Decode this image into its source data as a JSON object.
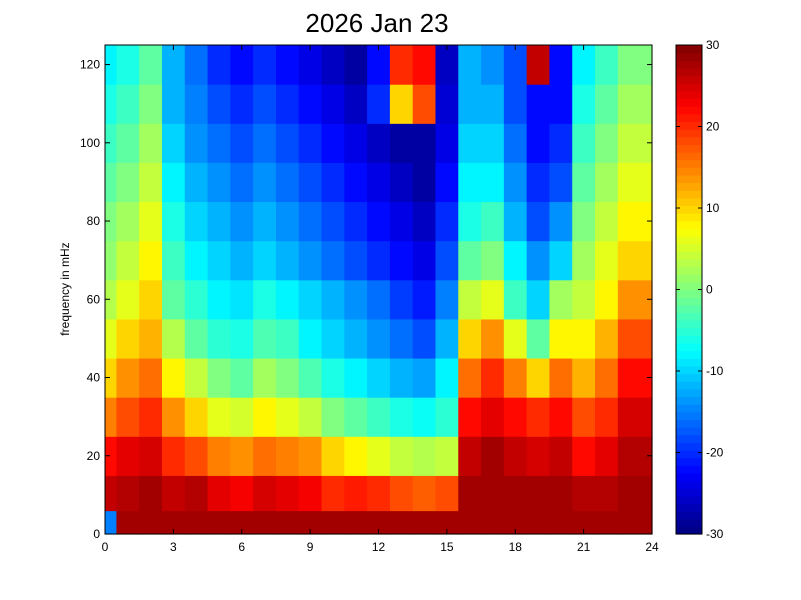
{
  "chart_data": {
    "type": "heatmap",
    "title": "2026 Jan 23",
    "xlabel": "",
    "ylabel": "frequency in mHz",
    "xlim": [
      0,
      24
    ],
    "ylim": [
      0,
      125
    ],
    "x_ticks": [
      "0",
      "3",
      "6",
      "9",
      "12",
      "15",
      "18",
      "21",
      "24"
    ],
    "y_ticks": [
      "0",
      "20",
      "40",
      "60",
      "80",
      "100",
      "120"
    ],
    "colorbar": {
      "range": [
        -30,
        30
      ],
      "ticks": [
        "-30",
        "-20",
        "-10",
        "0",
        "10",
        "20",
        "30"
      ],
      "colormap": "jet"
    },
    "grid": false,
    "x_bins": [
      0,
      1,
      2,
      3,
      4,
      5,
      6,
      7,
      8,
      9,
      10,
      11,
      12,
      13,
      14,
      15,
      16,
      17,
      18,
      19,
      20,
      21,
      22,
      23
    ],
    "y_bins": [
      2,
      10,
      20,
      30,
      40,
      50,
      60,
      70,
      80,
      90,
      100,
      110,
      120
    ],
    "values": [
      [
        -15,
        28,
        28,
        28,
        28,
        28,
        28,
        28,
        28,
        28,
        28,
        28,
        28,
        28,
        28,
        28,
        28,
        28,
        28,
        28,
        28,
        28,
        28,
        28
      ],
      [
        26,
        27,
        28,
        26,
        27,
        24,
        23,
        25,
        24,
        23,
        20,
        21,
        20,
        18,
        17,
        18,
        28,
        28,
        28,
        28,
        28,
        27,
        27,
        28
      ],
      [
        22,
        24,
        25,
        20,
        18,
        15,
        14,
        16,
        15,
        14,
        10,
        8,
        6,
        4,
        3,
        4,
        26,
        28,
        26,
        25,
        26,
        22,
        24,
        27
      ],
      [
        15,
        18,
        20,
        14,
        10,
        6,
        5,
        8,
        6,
        4,
        0,
        -2,
        -4,
        -6,
        -7,
        -5,
        22,
        24,
        22,
        20,
        22,
        18,
        20,
        25
      ],
      [
        10,
        14,
        16,
        8,
        4,
        0,
        -2,
        2,
        0,
        -3,
        -6,
        -8,
        -10,
        -12,
        -13,
        -8,
        16,
        20,
        15,
        10,
        16,
        12,
        16,
        22
      ],
      [
        6,
        10,
        12,
        3,
        -2,
        -5,
        -6,
        -3,
        -4,
        -8,
        -10,
        -12,
        -14,
        -16,
        -18,
        -12,
        10,
        14,
        6,
        -2,
        8,
        8,
        12,
        18
      ],
      [
        3,
        6,
        10,
        -2,
        -5,
        -8,
        -9,
        -6,
        -8,
        -10,
        -12,
        -14,
        -16,
        -19,
        -21,
        -15,
        4,
        6,
        -4,
        -10,
        2,
        4,
        8,
        14
      ],
      [
        1,
        4,
        8,
        -4,
        -8,
        -10,
        -12,
        -10,
        -12,
        -14,
        -16,
        -18,
        -20,
        -22,
        -24,
        -18,
        -2,
        0,
        -8,
        -14,
        -10,
        2,
        6,
        10
      ],
      [
        0,
        2,
        6,
        -6,
        -10,
        -12,
        -14,
        -12,
        -14,
        -16,
        -18,
        -20,
        -22,
        -24,
        -26,
        -20,
        -6,
        -4,
        -12,
        -18,
        -14,
        0,
        4,
        8
      ],
      [
        -2,
        0,
        4,
        -8,
        -12,
        -14,
        -16,
        -14,
        -16,
        -18,
        -20,
        -22,
        -24,
        -26,
        -28,
        -22,
        -8,
        -8,
        -14,
        -20,
        -18,
        -2,
        2,
        6
      ],
      [
        -4,
        -2,
        2,
        -10,
        -14,
        -16,
        -18,
        -16,
        -18,
        -20,
        -22,
        -24,
        -26,
        -28,
        -28,
        -24,
        -10,
        -10,
        -16,
        -22,
        -20,
        -4,
        0,
        4
      ],
      [
        -6,
        -4,
        0,
        -12,
        -15,
        -18,
        -20,
        -18,
        -20,
        -22,
        -24,
        -26,
        -20,
        10,
        18,
        -25,
        -12,
        -12,
        -18,
        -22,
        -22,
        -6,
        -2,
        2
      ],
      [
        -8,
        -6,
        -2,
        -12,
        -16,
        -20,
        -22,
        -20,
        -22,
        -24,
        -26,
        -28,
        -22,
        20,
        22,
        -26,
        -12,
        -14,
        -18,
        26,
        -22,
        -8,
        -4,
        0
      ]
    ]
  }
}
